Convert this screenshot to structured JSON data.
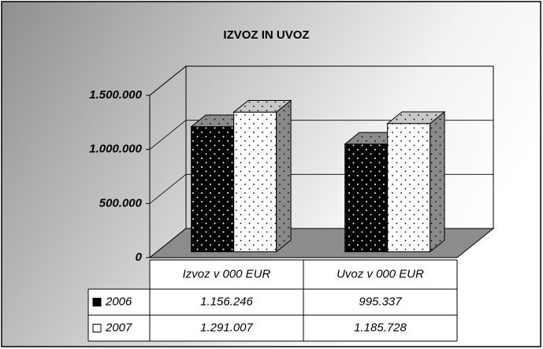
{
  "chart_data": {
    "type": "bar3d",
    "title": "IZVOZ IN UVOZ",
    "categories": [
      "Izvoz v 000 EUR",
      "Uvoz v 000 EUR"
    ],
    "series": [
      {
        "name": "2006",
        "color": "#000000",
        "values": [
          1156246,
          995337
        ],
        "value_labels": [
          "1.156.246",
          "995.337"
        ]
      },
      {
        "name": "2007",
        "color": "#ffffff",
        "values": [
          1291007,
          1185728
        ],
        "value_labels": [
          "1.291.007",
          "1.185.728"
        ]
      }
    ],
    "ylim": [
      0,
      1500000
    ],
    "yticks": [
      0,
      {
        "value": 500000,
        "label": "500.000"
      },
      {
        "value": 1000000,
        "label": "1.000.000"
      },
      {
        "value": 1500000,
        "label": "1.500.000"
      }
    ],
    "grid": true,
    "data_table": true
  }
}
